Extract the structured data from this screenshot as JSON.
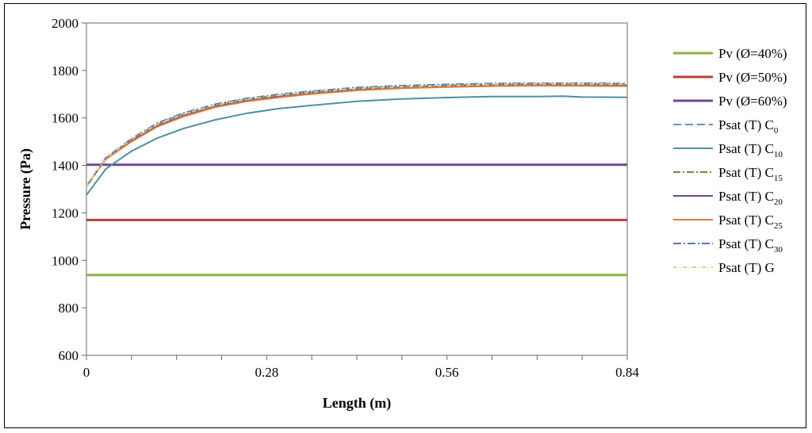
{
  "chart_data": {
    "type": "line",
    "title": "",
    "xlabel": "Length (m)",
    "ylabel": "Pressure (Pa)",
    "xlim": [
      0,
      0.84
    ],
    "ylim": [
      600,
      2000
    ],
    "xticks": [
      0,
      0.28,
      0.56,
      0.84
    ],
    "xtick_labels": [
      "0",
      "0.28",
      "0.56",
      "0.84"
    ],
    "yticks": [
      600,
      800,
      1000,
      1200,
      1400,
      1600,
      1800,
      2000
    ],
    "ytick_labels": [
      "600",
      "800",
      "1000",
      "1200",
      "1400",
      "1600",
      "1800",
      "2000"
    ],
    "grid": false,
    "legend": "right",
    "series": [
      {
        "legend_main": "Pv (Ø=40%)",
        "legend_sub": "",
        "color": "#8db040",
        "dash": "",
        "width": 3,
        "x": [
          0,
          0.84
        ],
        "y": [
          938,
          938
        ]
      },
      {
        "legend_main": "Pv (Ø=50%)",
        "legend_sub": "",
        "color": "#b8403c",
        "dash": "",
        "width": 3,
        "x": [
          0,
          0.84
        ],
        "y": [
          1170,
          1170
        ]
      },
      {
        "legend_main": "Pv (Ø=60%)",
        "legend_sub": "",
        "color": "#6e4a8e",
        "dash": "",
        "width": 3,
        "x": [
          0,
          0.84
        ],
        "y": [
          1403,
          1403
        ]
      },
      {
        "legend_main": "Psat (T)  C",
        "legend_sub": "0",
        "color": "#6f8cc4",
        "dash": "10,5",
        "width": 2,
        "x": [
          0,
          0.03,
          0.07,
          0.11,
          0.15,
          0.2,
          0.25,
          0.3,
          0.35,
          0.42,
          0.49,
          0.56,
          0.63,
          0.7,
          0.77,
          0.84
        ],
        "y": [
          1310,
          1430,
          1510,
          1575,
          1617,
          1655,
          1680,
          1697,
          1710,
          1725,
          1733,
          1738,
          1742,
          1744,
          1744,
          1743
        ]
      },
      {
        "legend_main": "Psat (T)  C",
        "legend_sub": "10",
        "color": "#4e8fa0",
        "dash": "",
        "width": 2,
        "x": [
          0,
          0.03,
          0.07,
          0.11,
          0.15,
          0.2,
          0.25,
          0.3,
          0.35,
          0.42,
          0.49,
          0.56,
          0.63,
          0.7,
          0.74,
          0.77,
          0.84
        ],
        "y": [
          1275,
          1385,
          1460,
          1515,
          1555,
          1592,
          1620,
          1640,
          1653,
          1670,
          1680,
          1686,
          1690,
          1690,
          1692,
          1688,
          1687
        ]
      },
      {
        "legend_main": "Psat (T)  C",
        "legend_sub": "15",
        "color": "#708f3c",
        "dash": "9,3,2,3",
        "width": 2,
        "x": [
          0,
          0.03,
          0.07,
          0.11,
          0.15,
          0.2,
          0.25,
          0.3,
          0.35,
          0.42,
          0.49,
          0.56,
          0.63,
          0.7,
          0.77,
          0.84
        ],
        "y": [
          1312,
          1428,
          1505,
          1568,
          1610,
          1650,
          1675,
          1692,
          1706,
          1721,
          1729,
          1734,
          1738,
          1740,
          1739,
          1738
        ]
      },
      {
        "legend_main": "Psat (T)  C",
        "legend_sub": "20",
        "color": "#6e4a8e",
        "dash": "",
        "width": 2,
        "x": [
          0,
          0.03,
          0.07,
          0.11,
          0.15,
          0.2,
          0.25,
          0.3,
          0.35,
          0.42,
          0.49,
          0.56,
          0.63,
          0.7,
          0.77,
          0.84
        ],
        "y": [
          1312,
          1427,
          1503,
          1566,
          1608,
          1648,
          1673,
          1690,
          1704,
          1719,
          1727,
          1732,
          1736,
          1738,
          1737,
          1736
        ]
      },
      {
        "legend_main": "Psat (T)  C",
        "legend_sub": "25",
        "color": "#e07b39",
        "dash": "",
        "width": 2,
        "x": [
          0,
          0.03,
          0.07,
          0.11,
          0.15,
          0.2,
          0.25,
          0.3,
          0.35,
          0.42,
          0.49,
          0.56,
          0.63,
          0.7,
          0.77,
          0.84
        ],
        "y": [
          1312,
          1426,
          1500,
          1563,
          1605,
          1645,
          1670,
          1687,
          1701,
          1716,
          1725,
          1730,
          1734,
          1736,
          1735,
          1734
        ]
      },
      {
        "legend_main": "Psat (T)  C",
        "legend_sub": "30",
        "color": "#5b74b5",
        "dash": "10,3,2,3",
        "width": 2,
        "x": [
          0,
          0.03,
          0.07,
          0.11,
          0.15,
          0.2,
          0.25,
          0.3,
          0.35,
          0.42,
          0.49,
          0.56,
          0.63,
          0.7,
          0.77,
          0.84
        ],
        "y": [
          1311,
          1432,
          1513,
          1578,
          1620,
          1658,
          1683,
          1700,
          1713,
          1728,
          1736,
          1741,
          1745,
          1746,
          1746,
          1745
        ]
      },
      {
        "legend_main": "Psat (T)  G",
        "legend_sub": "",
        "color": "#d6d680",
        "dash": "5,3,1,3",
        "width": 2,
        "x": [
          0,
          0.03,
          0.07,
          0.11,
          0.15,
          0.2,
          0.25,
          0.3,
          0.35,
          0.42,
          0.49,
          0.56,
          0.63,
          0.7,
          0.77,
          0.84
        ],
        "y": [
          1311,
          1430,
          1510,
          1574,
          1616,
          1654,
          1679,
          1696,
          1709,
          1724,
          1732,
          1737,
          1741,
          1743,
          1743,
          1742
        ]
      }
    ]
  }
}
